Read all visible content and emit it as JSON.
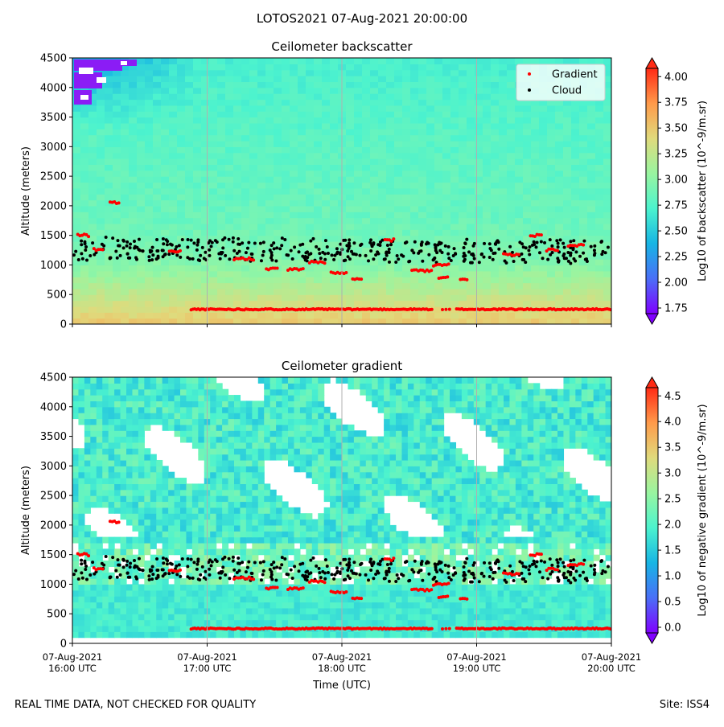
{
  "figure": {
    "title": "LOTOS2021 07-Aug-2021 20:00:00",
    "footer_left": "REAL TIME DATA, NOT CHECKED FOR QUALITY",
    "footer_right": "Site: ISS4"
  },
  "colors": {
    "gradient_marker": "#ff0000",
    "cloud_marker": "#000000",
    "grid": "#b0b0b0",
    "colormap": [
      "#8000ff",
      "#4a6ff7",
      "#17b5e4",
      "#4cf3ce",
      "#99f5a0",
      "#e0da7c",
      "#ff9a4a",
      "#ff2a14"
    ]
  },
  "chart_data": [
    {
      "type": "heatmap",
      "title": "Ceilometer backscatter",
      "xlabel": "",
      "ylabel": "Altitude (meters)",
      "ylim": [
        0,
        4500
      ],
      "yticks": [
        "0",
        "500",
        "1000",
        "1500",
        "2000",
        "2500",
        "3000",
        "3500",
        "4000",
        "4500"
      ],
      "xticks": [],
      "grid": true,
      "colorbar": {
        "label": "Log10 of backscatter (10^-9/m.sr)",
        "min": 1.75,
        "max": 4.0,
        "ticks": [
          "1.75",
          "2.00",
          "2.25",
          "2.50",
          "2.75",
          "3.00",
          "3.25",
          "3.50",
          "3.75",
          "4.00"
        ]
      },
      "legend": {
        "placement": "top-right",
        "entries": [
          {
            "label": "Gradient",
            "color": "#ff0000"
          },
          {
            "label": "Cloud",
            "color": "#000000"
          }
        ]
      },
      "description_values": {
        "surface_layer_log_backscatter": 3.5,
        "cloud_base_altitude_m": [
          1000,
          1600
        ],
        "gradient_points_main_altitude_m": 250
      }
    },
    {
      "type": "heatmap",
      "title": "Ceilometer gradient",
      "xlabel": "Time (UTC)",
      "ylabel": "Altitude (meters)",
      "ylim": [
        0,
        4500
      ],
      "yticks": [
        "0",
        "500",
        "1000",
        "1500",
        "2000",
        "2500",
        "3000",
        "3500",
        "4000",
        "4500"
      ],
      "xticks": [
        {
          "date": "07-Aug-2021",
          "time": "16:00 UTC"
        },
        {
          "date": "07-Aug-2021",
          "time": "17:00 UTC"
        },
        {
          "date": "07-Aug-2021",
          "time": "18:00 UTC"
        },
        {
          "date": "07-Aug-2021",
          "time": "19:00 UTC"
        },
        {
          "date": "07-Aug-2021",
          "time": "20:00 UTC"
        }
      ],
      "grid": true,
      "colorbar": {
        "label": "Log10 of negative gradient (10^-9/m.sr)",
        "min": 0.0,
        "max": 4.5,
        "ticks": [
          "0.0",
          "0.5",
          "1.0",
          "1.5",
          "2.0",
          "2.5",
          "3.0",
          "3.5",
          "4.0",
          "4.5"
        ]
      }
    }
  ]
}
